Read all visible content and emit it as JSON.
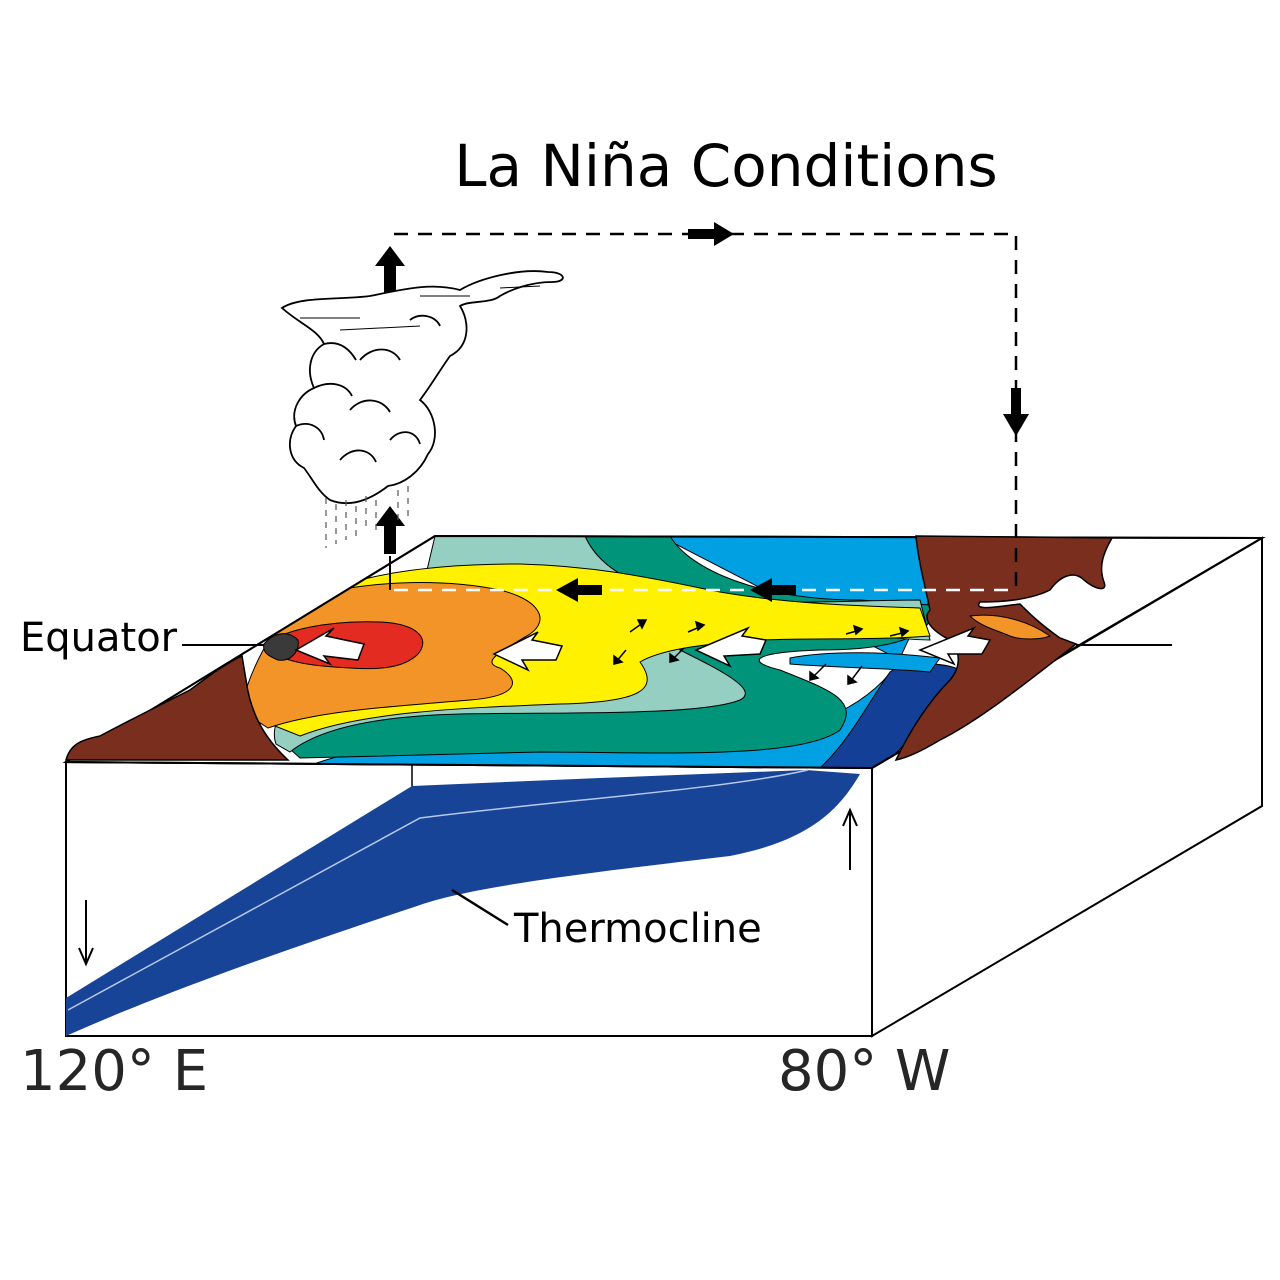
{
  "title": "La Niña Conditions",
  "labels": {
    "equator": "Equator",
    "thermocline": "Thermocline",
    "lon_west": "120° E",
    "lon_east": "80° W"
  },
  "colors": {
    "warmest": "#e32b22",
    "warm": "#f39428",
    "mild": "#fff100",
    "cool": "#95cfc1",
    "cooler": "#00947a",
    "cold": "#00a0e3",
    "coldest": "#143f96",
    "land": "#7a2f1e",
    "thermocline": "#174496"
  },
  "icons": [
    "cloud-icon",
    "rain-icon",
    "wind-arrow-icon",
    "circulation-arrow-icon"
  ]
}
